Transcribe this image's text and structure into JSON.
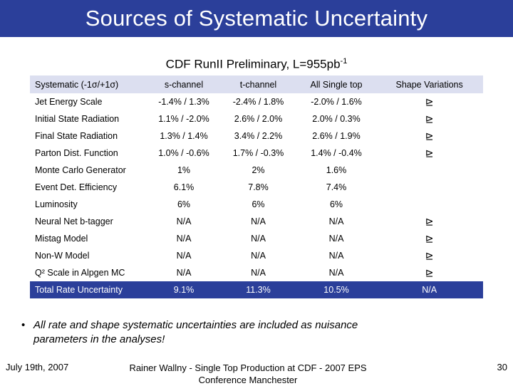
{
  "slide": {
    "title": "Sources of Systematic Uncertainty",
    "subtitle_main": "CDF RunII Preliminary, L=955pb",
    "subtitle_sup": "-1",
    "colors": {
      "accent": "#2b3f9a",
      "header_band": "#dcdff0",
      "text_on_accent": "#ffffff"
    },
    "check_icon_glyph": "⊵"
  },
  "table": {
    "headers": [
      "Systematic (-1σ/+1σ)",
      "s-channel",
      "t-channel",
      "All Single top",
      "Shape Variations"
    ],
    "rows": [
      {
        "name": "Jet Energy Scale",
        "s": "-1.4% / 1.3%",
        "t": "-2.4% / 1.8%",
        "all": "-2.0% / 1.6%",
        "shape": "⊵"
      },
      {
        "name": "Initial State Radiation",
        "s": "1.1% / -2.0%",
        "t": "2.6% / 2.0%",
        "all": "2.0% / 0.3%",
        "shape": "⊵"
      },
      {
        "name": "Final State Radiation",
        "s": "1.3% / 1.4%",
        "t": "3.4% / 2.2%",
        "all": "2.6% / 1.9%",
        "shape": "⊵"
      },
      {
        "name": "Parton Dist. Function",
        "s": "1.0% / -0.6%",
        "t": "1.7% / -0.3%",
        "all": "1.4% / -0.4%",
        "shape": "⊵"
      },
      {
        "name": "Monte Carlo Generator",
        "s": "1%",
        "t": "2%",
        "all": "1.6%",
        "shape": ""
      },
      {
        "name": "Event Det. Efficiency",
        "s": "6.1%",
        "t": "7.8%",
        "all": "7.4%",
        "shape": ""
      },
      {
        "name": "Luminosity",
        "s": "6%",
        "t": "6%",
        "all": "6%",
        "shape": ""
      },
      {
        "name": "Neural Net b-tagger",
        "s": "N/A",
        "t": "N/A",
        "all": "N/A",
        "shape": "⊵"
      },
      {
        "name": "Mistag Model",
        "s": "N/A",
        "t": "N/A",
        "all": "N/A",
        "shape": "⊵"
      },
      {
        "name": "Non-W Model",
        "s": "N/A",
        "t": "N/A",
        "all": "N/A",
        "shape": "⊵"
      },
      {
        "name": "Q² Scale in Alpgen MC",
        "s": "N/A",
        "t": "N/A",
        "all": "N/A",
        "shape": "⊵"
      }
    ],
    "total": {
      "name": "Total Rate Uncertainty",
      "s": "9.1%",
      "t": "11.3%",
      "all": "10.5%",
      "shape": "N/A"
    }
  },
  "bullet": {
    "marker": "•",
    "text": "All rate and shape systematic uncertainties are included as nuisance parameters in the analyses!"
  },
  "footer": {
    "date": "July  19th, 2007",
    "center": "Rainer Wallny - Single Top Production at CDF  - 2007 EPS Conference Manchester",
    "page": "30"
  }
}
